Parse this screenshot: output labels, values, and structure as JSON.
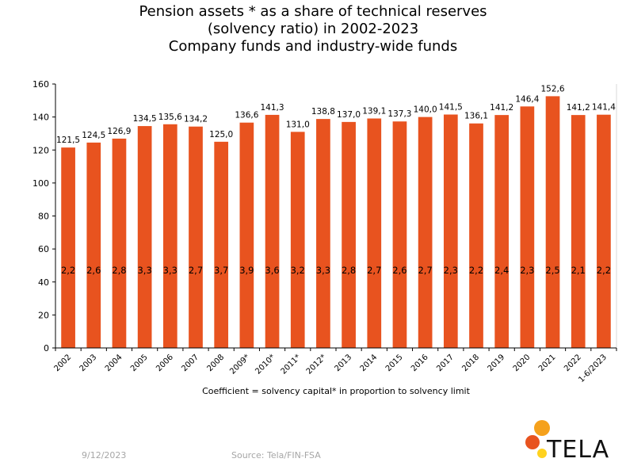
{
  "chart_data": {
    "type": "bar",
    "title": [
      "Pension assets * as a share of technical reserves",
      "(solvency ratio) in 2002-2023",
      "Company funds and industry-wide funds"
    ],
    "categories": [
      "2002",
      "2003",
      "2004",
      "2005",
      "2006",
      "2007",
      "2008",
      "2009*",
      "2010*",
      "2011*",
      "2012*",
      "2013",
      "2014",
      "2015",
      "2016",
      "2017",
      "2018",
      "2019",
      "2020",
      "2021",
      "2022",
      "1-6/2023"
    ],
    "values": [
      121.5,
      124.5,
      126.9,
      134.5,
      135.6,
      134.2,
      125.0,
      136.6,
      141.3,
      131.0,
      138.8,
      137.0,
      139.1,
      137.3,
      140.0,
      141.5,
      136.1,
      141.2,
      146.4,
      152.6,
      141.2,
      141.4
    ],
    "value_labels": [
      "121,5",
      "124,5",
      "126,9",
      "134,5",
      "135,6",
      "134,2",
      "125,0",
      "136,6",
      "141,3",
      "131,0",
      "138,8",
      "137,0",
      "139,1",
      "137,3",
      "140,0",
      "141,5",
      "136,1",
      "141,2",
      "146,4",
      "152,6",
      "141,2",
      "141,4"
    ],
    "coefficients": [
      "2,2",
      "2,6",
      "2,8",
      "3,3",
      "3,3",
      "2,7",
      "3,7",
      "3,9",
      "3,6",
      "3,2",
      "3,3",
      "2,8",
      "2,7",
      "2,6",
      "2,7",
      "2,3",
      "2,2",
      "2,4",
      "2,3",
      "2,5",
      "2,1",
      "2,2"
    ],
    "ylim": [
      0,
      160
    ],
    "yticks": [
      0,
      20,
      40,
      60,
      80,
      100,
      120,
      140,
      160
    ],
    "grid": false,
    "bar_color": "#e8531f",
    "note": "Coefficient = solvency capital* in proportion to solvency limit"
  },
  "footer": {
    "date": "9/12/2023",
    "source": "Source: Tela/FIN-FSA"
  },
  "logo": {
    "text": "TELA",
    "colors": [
      "#f5a11c",
      "#e8531f",
      "#ffd21f"
    ]
  }
}
